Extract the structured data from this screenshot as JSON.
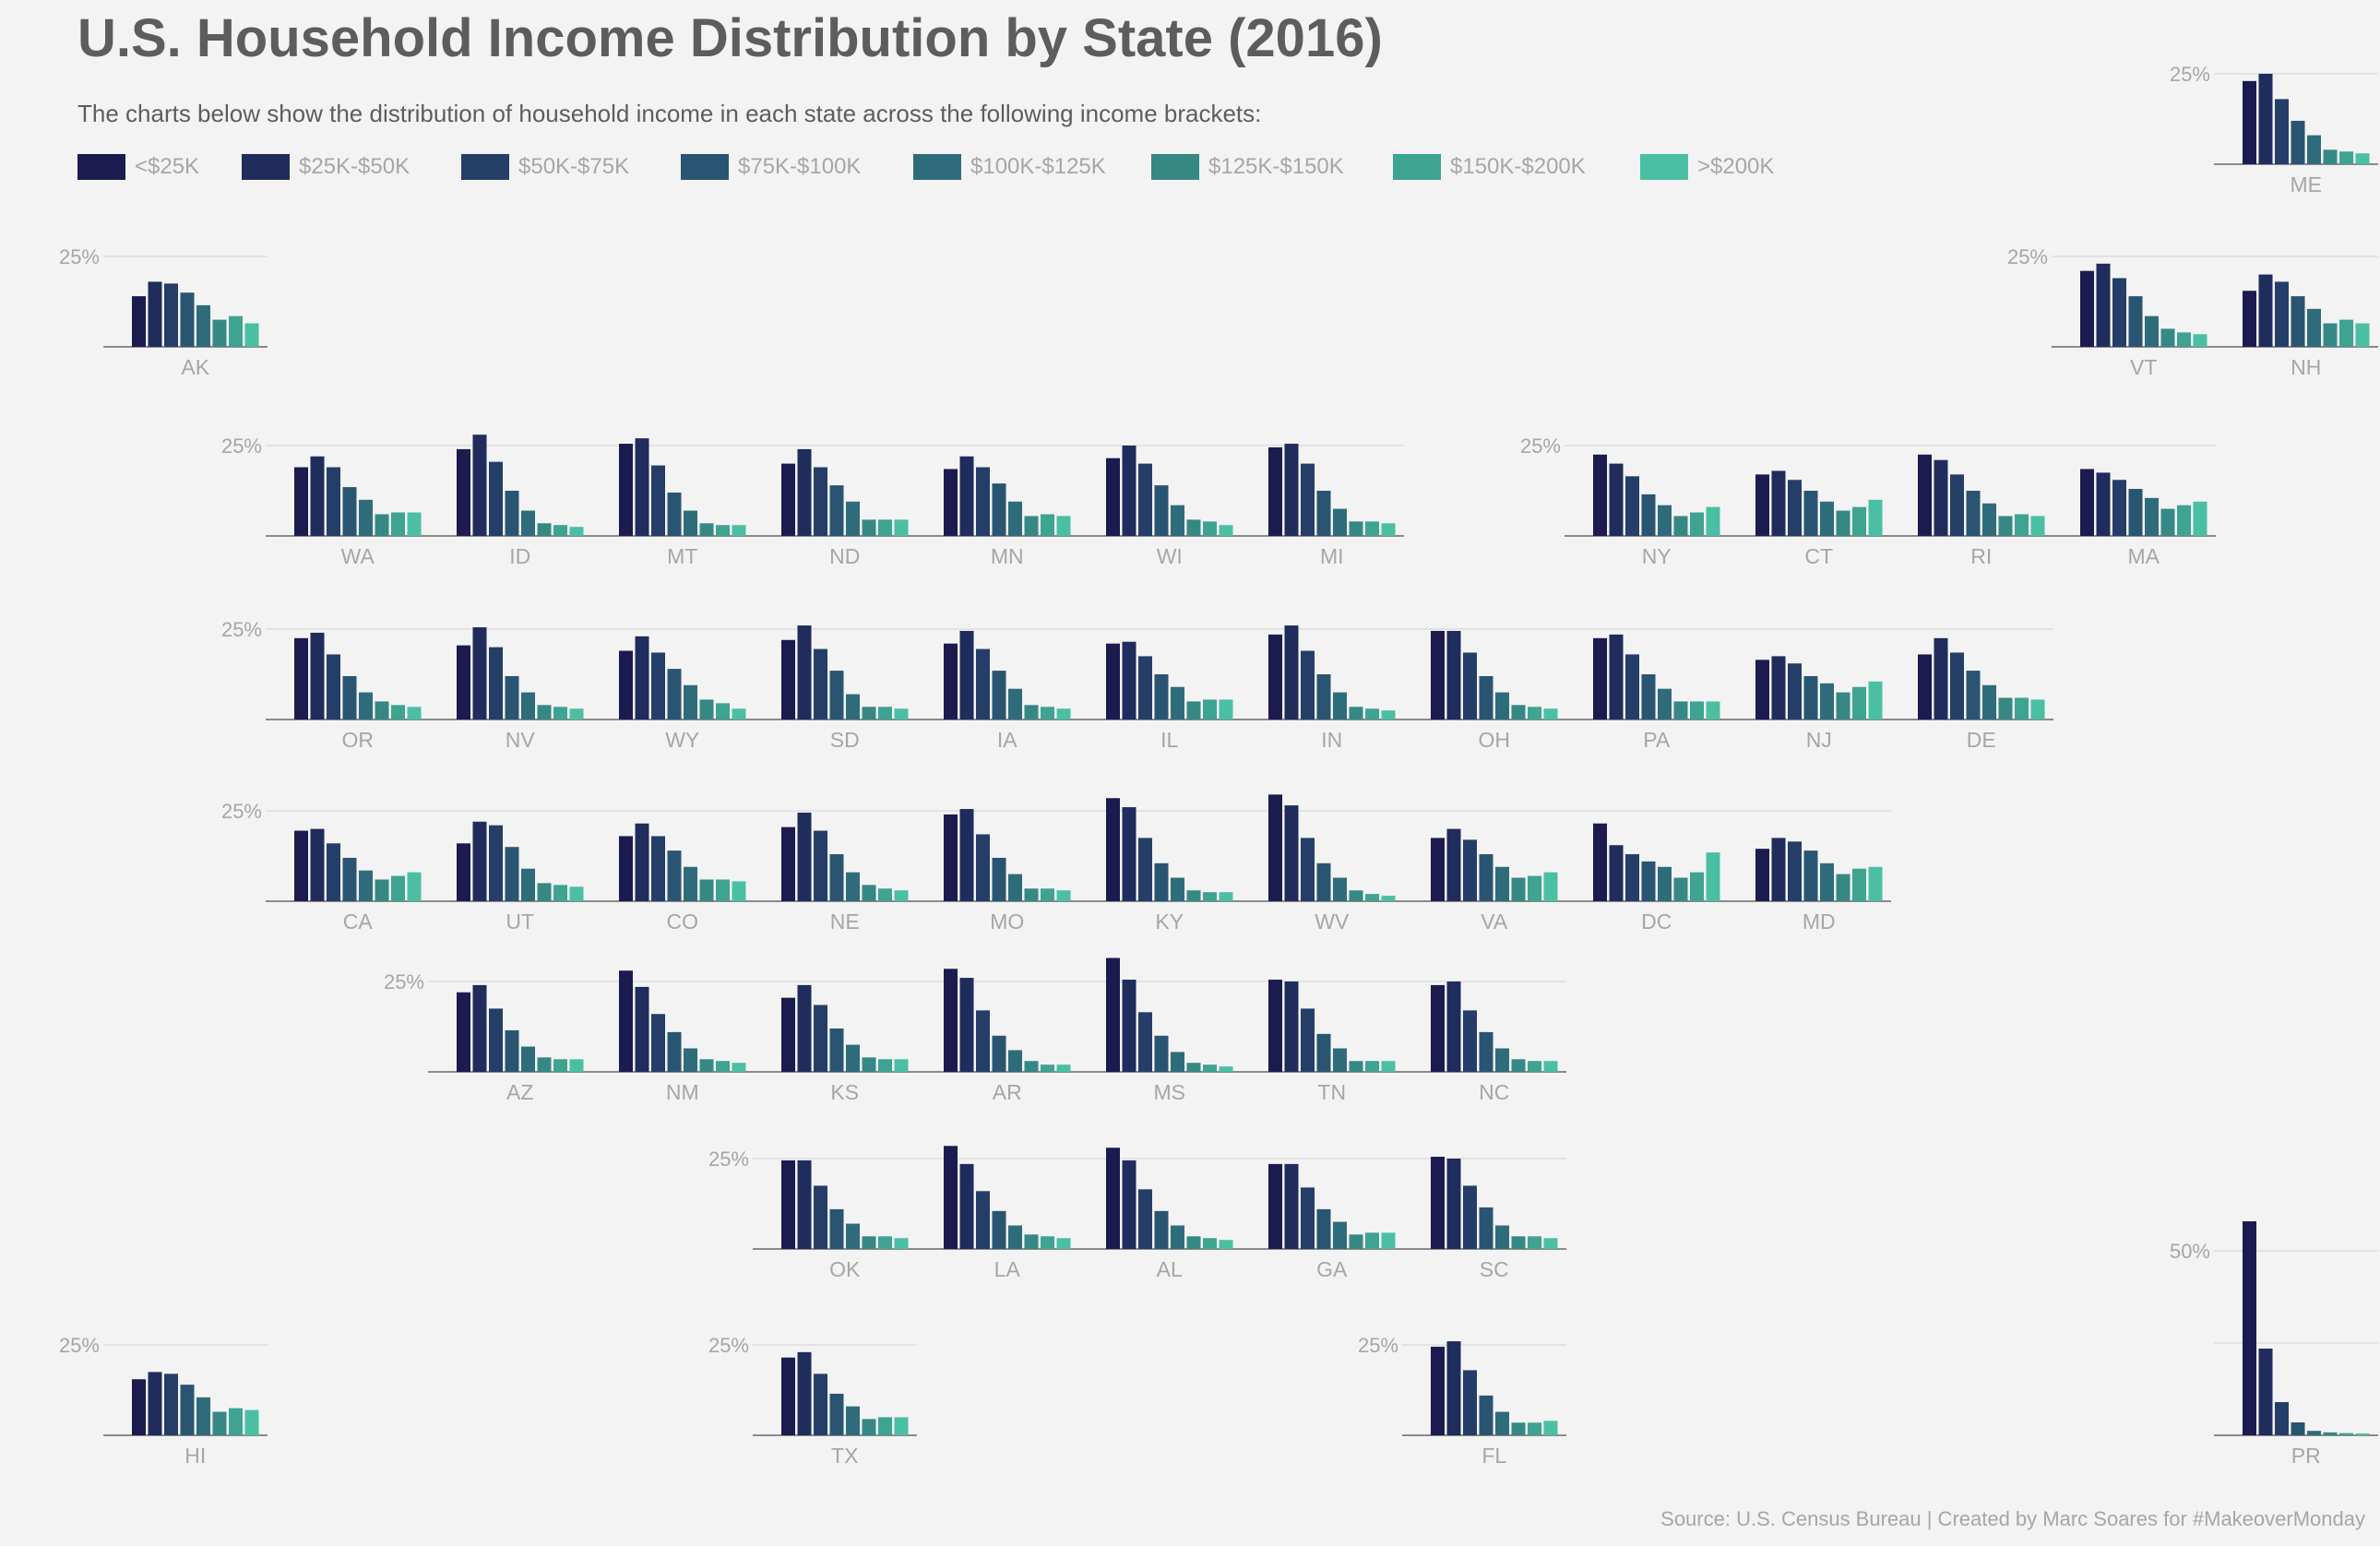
{
  "title": "U.S. Household Income Distribution by State (2016)",
  "subtitle": "The charts below show the distribution of household income in each state across the following income brackets:",
  "legend": [
    {
      "label": "<$25K",
      "color": "#1c1b4f"
    },
    {
      "label": "$25K-$50K",
      "color": "#1f2c5c"
    },
    {
      "label": "$50K-$75K",
      "color": "#243e68"
    },
    {
      "label": "$75K-$100K",
      "color": "#2a5572"
    },
    {
      "label": "$100K-$125K",
      "color": "#2f6c7b"
    },
    {
      "label": "$125K-$150K",
      "color": "#368884"
    },
    {
      "label": "$150K-$200K",
      "color": "#3ea391"
    },
    {
      "label": ">$200K",
      "color": "#4bbfa3"
    }
  ],
  "source": "Source: U.S. Census Bureau | Created by Marc Soares for #MakeoverMonday",
  "chart_data": {
    "type": "bar",
    "categories": [
      "<$25K",
      "$25K-$50K",
      "$50K-$75K",
      "$75K-$100K",
      "$100K-$125K",
      "$125K-$150K",
      "$150K-$200K",
      ">$200K"
    ],
    "y_unit": "%",
    "gridline": 25,
    "states": [
      {
        "state": "ME",
        "values": [
          23,
          25,
          18,
          12,
          8,
          4,
          3.5,
          3
        ]
      },
      {
        "state": "AK",
        "values": [
          14,
          18,
          17.5,
          15,
          11.5,
          7.5,
          8.5,
          6.5
        ]
      },
      {
        "state": "VT",
        "values": [
          21,
          23,
          19,
          14,
          8.5,
          5,
          4,
          3.5
        ]
      },
      {
        "state": "NH",
        "values": [
          15.5,
          20,
          18,
          14,
          10.5,
          6.5,
          7.5,
          6.5
        ]
      },
      {
        "state": "WA",
        "values": [
          19,
          22,
          19,
          13.5,
          10,
          6,
          6.5,
          6.5
        ]
      },
      {
        "state": "ID",
        "values": [
          24,
          28,
          20.5,
          12.5,
          7,
          3.5,
          3,
          2.5
        ]
      },
      {
        "state": "MT",
        "values": [
          25.5,
          27,
          19.5,
          12,
          7,
          3.5,
          3,
          3
        ]
      },
      {
        "state": "ND",
        "values": [
          20,
          24,
          19,
          14,
          9.5,
          4.5,
          4.5,
          4.5
        ]
      },
      {
        "state": "MN",
        "values": [
          18.5,
          22,
          19,
          14.5,
          9.5,
          5.5,
          6,
          5.5
        ]
      },
      {
        "state": "WI",
        "values": [
          21.5,
          25,
          20,
          14,
          8.5,
          4.5,
          4,
          3
        ]
      },
      {
        "state": "MI",
        "values": [
          24.5,
          25.5,
          20,
          12.5,
          7.5,
          4,
          4,
          3.5
        ]
      },
      {
        "state": "NY",
        "values": [
          22.5,
          20,
          16.5,
          11.5,
          8.5,
          5.5,
          6.5,
          8
        ]
      },
      {
        "state": "CT",
        "values": [
          17,
          18,
          15.5,
          12.5,
          9.5,
          7,
          8,
          10
        ]
      },
      {
        "state": "RI",
        "values": [
          22.5,
          21,
          17,
          12.5,
          9,
          5.5,
          6,
          5.5
        ]
      },
      {
        "state": "MA",
        "values": [
          18.5,
          17.5,
          15.5,
          13,
          10.5,
          7.5,
          8.5,
          9.5
        ]
      },
      {
        "state": "OR",
        "values": [
          22.5,
          24,
          18,
          12,
          7.5,
          5,
          4,
          3.5
        ]
      },
      {
        "state": "NV",
        "values": [
          20.5,
          25.5,
          20,
          12,
          7.5,
          4,
          3.5,
          3
        ]
      },
      {
        "state": "WY",
        "values": [
          19,
          23,
          18.5,
          14,
          9.5,
          5.5,
          4.5,
          3
        ]
      },
      {
        "state": "SD",
        "values": [
          22,
          26,
          19.5,
          13.5,
          7,
          3.5,
          3.5,
          3
        ]
      },
      {
        "state": "IA",
        "values": [
          21,
          24.5,
          19.5,
          13.5,
          8.5,
          4,
          3.5,
          3
        ]
      },
      {
        "state": "IL",
        "values": [
          21,
          21.5,
          17.5,
          12.5,
          9,
          5,
          5.5,
          5.5
        ]
      },
      {
        "state": "IN",
        "values": [
          23.5,
          26,
          19,
          12.5,
          7.5,
          3.5,
          3,
          2.5
        ]
      },
      {
        "state": "OH",
        "values": [
          24.5,
          24.5,
          18.5,
          12,
          7.5,
          4,
          3.5,
          3
        ]
      },
      {
        "state": "PA",
        "values": [
          22.5,
          23.5,
          18,
          12.5,
          8.5,
          5,
          5,
          5
        ]
      },
      {
        "state": "NJ",
        "values": [
          16.5,
          17.5,
          15.5,
          12,
          10,
          7.5,
          9,
          10.5
        ]
      },
      {
        "state": "DE",
        "values": [
          18,
          22.5,
          18.5,
          13.5,
          9.5,
          6,
          6,
          5.5
        ]
      },
      {
        "state": "CA",
        "values": [
          19.5,
          20,
          16,
          12,
          8.5,
          6,
          7,
          8
        ]
      },
      {
        "state": "UT",
        "values": [
          16,
          22,
          21,
          15,
          9,
          5,
          4.5,
          4
        ]
      },
      {
        "state": "CO",
        "values": [
          18,
          21.5,
          18,
          14,
          9.5,
          6,
          6,
          5.5
        ]
      },
      {
        "state": "NE",
        "values": [
          20.5,
          24.5,
          19.5,
          13,
          8,
          4.5,
          3.5,
          3
        ]
      },
      {
        "state": "MO",
        "values": [
          24,
          25.5,
          18.5,
          12,
          7.5,
          3.5,
          3.5,
          3
        ]
      },
      {
        "state": "KY",
        "values": [
          28.5,
          26,
          17.5,
          10.5,
          6.5,
          3,
          2.5,
          2.5
        ]
      },
      {
        "state": "WV",
        "values": [
          29.5,
          26.5,
          17.5,
          10.5,
          6.5,
          3,
          2,
          1.5
        ]
      },
      {
        "state": "VA",
        "values": [
          17.5,
          20,
          17,
          13,
          9.5,
          6.5,
          7,
          8
        ]
      },
      {
        "state": "DC",
        "values": [
          21.5,
          15.5,
          13,
          11,
          9.5,
          6.5,
          8,
          13.5
        ]
      },
      {
        "state": "MD",
        "values": [
          14.5,
          17.5,
          16.5,
          14,
          10.5,
          7.5,
          9,
          9.5
        ]
      },
      {
        "state": "AZ",
        "values": [
          22,
          24,
          17.5,
          11.5,
          7,
          4,
          3.5,
          3.5
        ]
      },
      {
        "state": "NM",
        "values": [
          28,
          23.5,
          16,
          11,
          6.5,
          3.5,
          3,
          2.5
        ]
      },
      {
        "state": "KS",
        "values": [
          20.5,
          24,
          18.5,
          12,
          7.5,
          4,
          3.5,
          3.5
        ]
      },
      {
        "state": "AR",
        "values": [
          28.5,
          26,
          17,
          10,
          6,
          3,
          2,
          2
        ]
      },
      {
        "state": "MS",
        "values": [
          31.5,
          25.5,
          16.5,
          10,
          5.5,
          2.5,
          2,
          1.5
        ]
      },
      {
        "state": "TN",
        "values": [
          25.5,
          25,
          17.5,
          10.5,
          6.5,
          3,
          3,
          3
        ]
      },
      {
        "state": "NC",
        "values": [
          24,
          25,
          17,
          11,
          6.5,
          3.5,
          3,
          3
        ]
      },
      {
        "state": "OK",
        "values": [
          24.5,
          24.5,
          17.5,
          11,
          7,
          3.5,
          3.5,
          3
        ]
      },
      {
        "state": "LA",
        "values": [
          28.5,
          23.5,
          16,
          10.5,
          6.5,
          4,
          3.5,
          3
        ]
      },
      {
        "state": "AL",
        "values": [
          28,
          24.5,
          16.5,
          10.5,
          6.5,
          3.5,
          3,
          2.5
        ]
      },
      {
        "state": "GA",
        "values": [
          23.5,
          23.5,
          17,
          11,
          7.5,
          4,
          4.5,
          4.5
        ]
      },
      {
        "state": "SC",
        "values": [
          25.5,
          25,
          17.5,
          11.5,
          6.5,
          3.5,
          3.5,
          3
        ]
      },
      {
        "state": "HI",
        "values": [
          15.5,
          17.5,
          17,
          14,
          10.5,
          6.5,
          7.5,
          7
        ]
      },
      {
        "state": "TX",
        "values": [
          21.5,
          23,
          17,
          11.5,
          8,
          4.5,
          5,
          5
        ]
      },
      {
        "state": "FL",
        "values": [
          24.5,
          26,
          18,
          11,
          6.5,
          3.5,
          3.5,
          4
        ]
      },
      {
        "state": "PR",
        "values": [
          58,
          23.5,
          9,
          3.5,
          1.2,
          0.8,
          0.6,
          0.5
        ],
        "gridline": 50
      }
    ]
  }
}
